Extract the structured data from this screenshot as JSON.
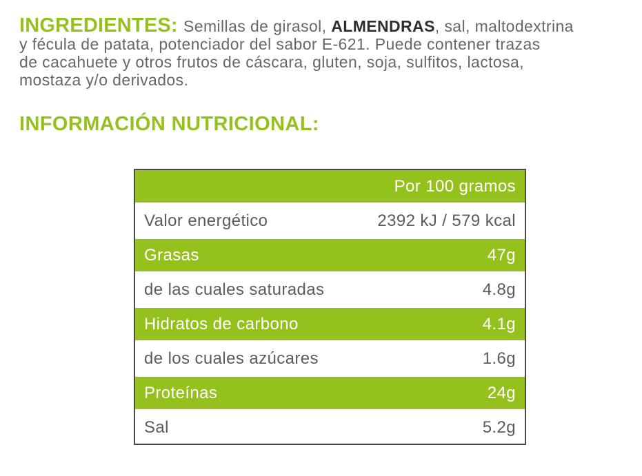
{
  "colors": {
    "accent_green": "#95C11F",
    "body_text": "#66676A",
    "dark_text": "#2E2D2F",
    "table_border": "#4A4A4C",
    "table_text": "#5B5C5E",
    "page_bg": "#FFFFFF"
  },
  "ingredients": {
    "lines": [
      [
        {
          "text": "INGREDIENTES: ",
          "style": "label"
        },
        {
          "text": "Semillas de girasol, ",
          "style": "normal"
        },
        {
          "text": "ALMENDRAS",
          "style": "bold-dark"
        },
        {
          "text": ", sal, maltodextrina",
          "style": "normal"
        }
      ],
      [
        {
          "text": "y fécula de patata, potenciador del sabor E-621. Puede contener trazas",
          "style": "normal"
        }
      ],
      [
        {
          "text": "de cacahuete y otros frutos de cáscara, gluten, soja, sulfitos, lactosa,",
          "style": "normal"
        }
      ],
      [
        {
          "text": "mostaza y/o derivados.",
          "style": "normal"
        }
      ]
    ]
  },
  "section_title": "INFORMACIÓN NUTRICIONAL:",
  "nutrition_table": {
    "header": "Por 100 gramos",
    "rows": [
      {
        "label": "Valor energético",
        "value": "2392 kJ / 579 kcal",
        "highlight": false
      },
      {
        "label": "Grasas",
        "value": "47g",
        "highlight": true
      },
      {
        "label": "de las cuales saturadas",
        "value": "4.8g",
        "highlight": false
      },
      {
        "label": "Hidratos de carbono",
        "value": "4.1g",
        "highlight": true
      },
      {
        "label": "de los cuales azúcares",
        "value": "1.6g",
        "highlight": false
      },
      {
        "label": "Proteínas",
        "value": "24g",
        "highlight": true
      },
      {
        "label": "Sal",
        "value": "5.2g",
        "highlight": false
      }
    ]
  }
}
